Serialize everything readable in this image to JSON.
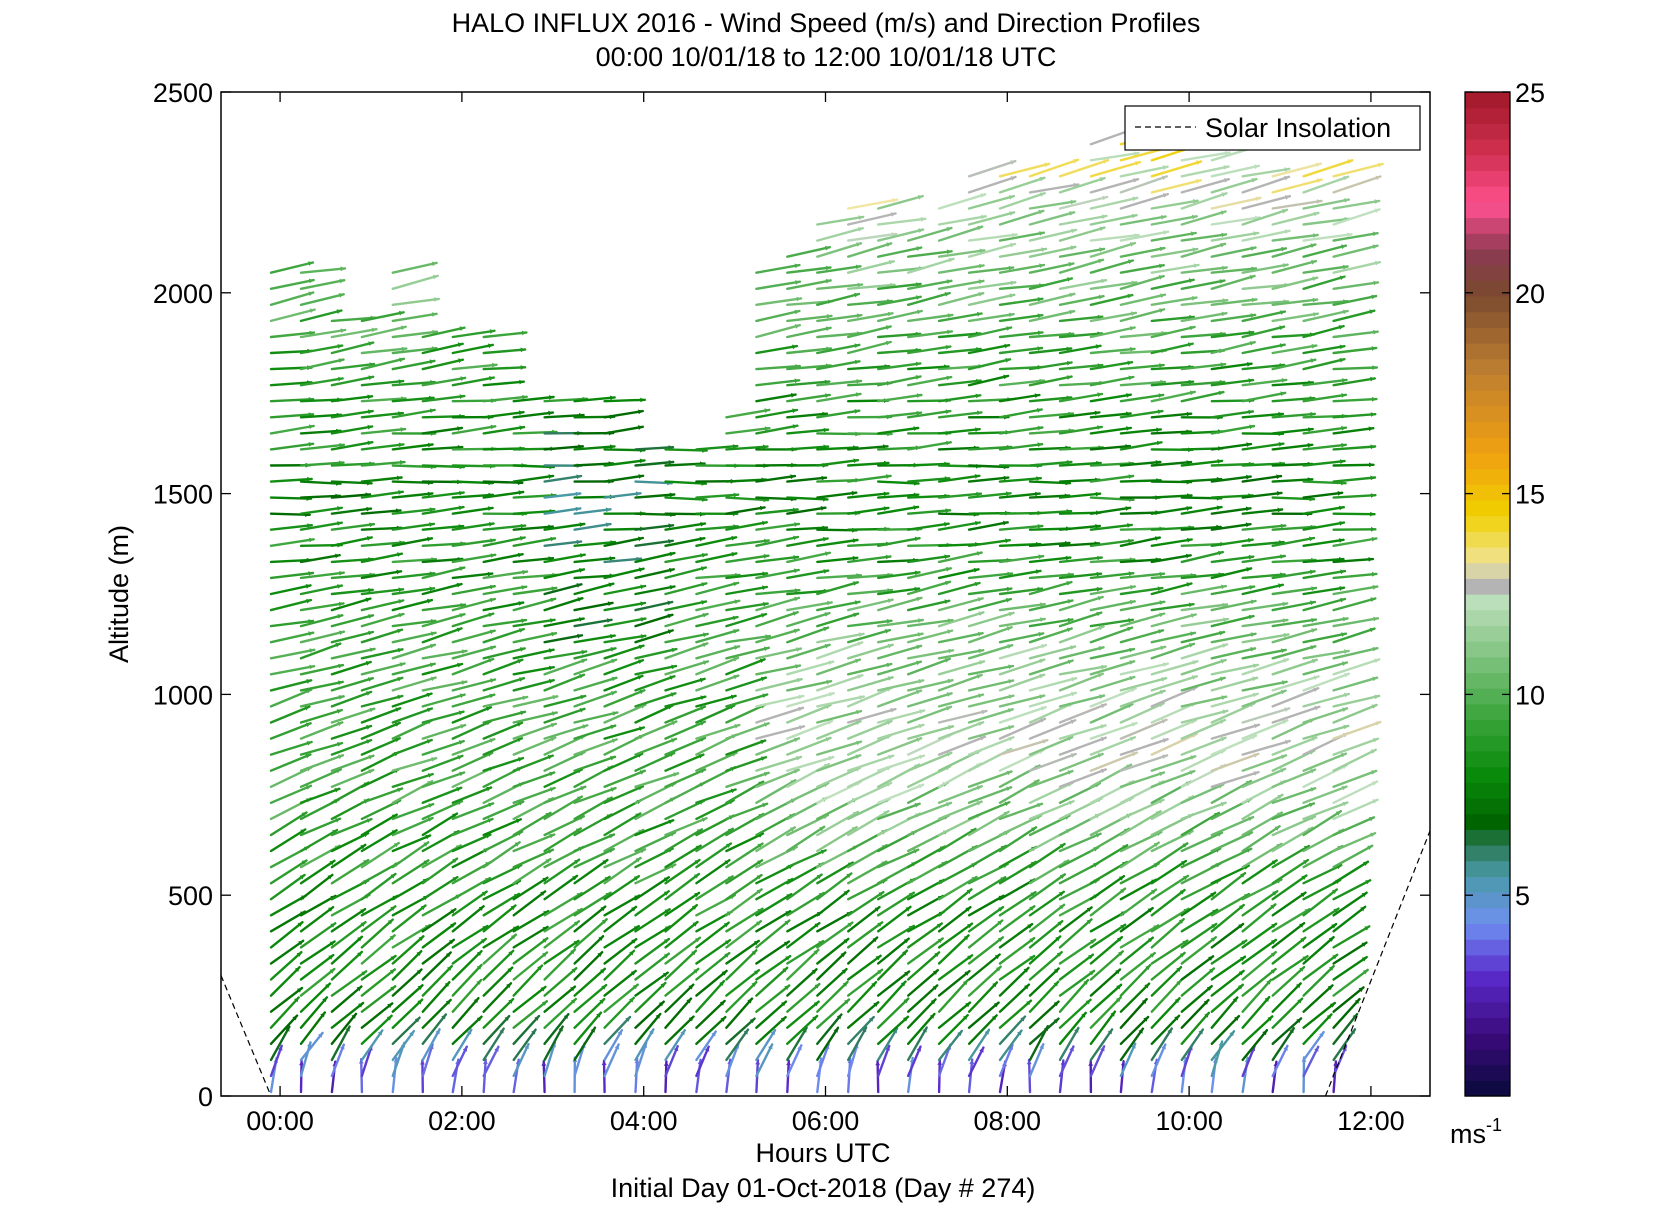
{
  "chart_data": {
    "type": "wind-barb profile (time-height)",
    "title": "HALO INFLUX 2016 - Wind Speed (m/s) and Direction Profiles",
    "subtitle": "00:00 10/01/18 to 12:00 10/01/18  UTC",
    "xlabel": "Hours UTC",
    "xlabel2": "Initial Day 01-Oct-2018 (Day # 274)",
    "ylabel": "Altitude (m)",
    "x_ticks": [
      "00:00",
      "02:00",
      "04:00",
      "06:00",
      "08:00",
      "10:00",
      "12:00"
    ],
    "x_tick_hours": [
      0,
      2,
      4,
      6,
      8,
      10,
      12
    ],
    "xlim_hours": [
      -0.65,
      12.65
    ],
    "y_ticks": [
      "0",
      "500",
      "1000",
      "1500",
      "2000",
      "2500"
    ],
    "y_tick_values": [
      0,
      500,
      1000,
      1500,
      2000,
      2500
    ],
    "ylim": [
      0,
      2500
    ],
    "colorbar": {
      "ticks": [
        "5",
        "10",
        "15",
        "20",
        "25"
      ],
      "tick_values": [
        5,
        10,
        15,
        20,
        25
      ],
      "range": [
        0,
        25
      ],
      "unit_base": "ms",
      "unit_exp": "-1",
      "stops": [
        {
          "v": 0,
          "color": "#0a0a3c"
        },
        {
          "v": 1.5,
          "color": "#3a0a7a"
        },
        {
          "v": 3,
          "color": "#5a2acc"
        },
        {
          "v": 4.3,
          "color": "#6f8ff0"
        },
        {
          "v": 5.5,
          "color": "#4a9aa8"
        },
        {
          "v": 6.2,
          "color": "#2e7a5a"
        },
        {
          "v": 6.8,
          "color": "#006400"
        },
        {
          "v": 8,
          "color": "#0a8a0a"
        },
        {
          "v": 9.5,
          "color": "#3ea63e"
        },
        {
          "v": 11,
          "color": "#82c482"
        },
        {
          "v": 12.4,
          "color": "#bfe0bf"
        },
        {
          "v": 12.6,
          "color": "#b4b4b4"
        },
        {
          "v": 12.9,
          "color": "#b4b4b4"
        },
        {
          "v": 13.2,
          "color": "#f0e6a0"
        },
        {
          "v": 14.5,
          "color": "#f0d000"
        },
        {
          "v": 16,
          "color": "#f0a010"
        },
        {
          "v": 18,
          "color": "#c08030"
        },
        {
          "v": 20,
          "color": "#7a4a30"
        },
        {
          "v": 21,
          "color": "#8a3a50"
        },
        {
          "v": 22.2,
          "color": "#ff5090"
        },
        {
          "v": 23.5,
          "color": "#d03050"
        },
        {
          "v": 25,
          "color": "#a01828"
        }
      ]
    },
    "legend": {
      "label": "Solar Insolation",
      "style": "dashed",
      "placement": "top-right"
    },
    "solar_insolation_lines": [
      {
        "points": [
          [
            -0.65,
            300
          ],
          [
            -0.1,
            0
          ]
        ]
      },
      {
        "points": [
          [
            11.5,
            0
          ],
          [
            12.65,
            660
          ]
        ]
      }
    ],
    "profile_times_hours": [
      -0.1,
      0.23,
      0.57,
      0.9,
      1.24,
      1.57,
      1.9,
      2.24,
      2.57,
      2.91,
      3.24,
      3.57,
      3.91,
      4.24,
      4.58,
      4.91,
      5.24,
      5.58,
      5.91,
      6.25,
      6.58,
      6.91,
      7.25,
      7.58,
      7.92,
      8.25,
      8.58,
      8.92,
      9.25,
      9.59,
      9.92,
      10.25,
      10.59,
      10.92,
      11.26,
      11.59
    ],
    "profile_top_altitude_m": [
      2080,
      2050,
      1950,
      1950,
      2080,
      1920,
      1920,
      1920,
      1760,
      1760,
      1760,
      1760,
      1640,
      1620,
      1640,
      1720,
      2050,
      2090,
      2180,
      2220,
      2220,
      2160,
      2240,
      2290,
      2290,
      2290,
      2310,
      2370,
      2370,
      2400,
      2400,
      2350,
      2310,
      2310,
      2290,
      2290
    ],
    "altitude_step_m": 40,
    "wind_regime": [
      {
        "alt_m": 0,
        "speed_ms": 3.5,
        "dir_deg": 200
      },
      {
        "alt_m": 60,
        "speed_ms": 4.5,
        "dir_deg": 215
      },
      {
        "alt_m": 150,
        "speed_ms": 8,
        "dir_deg": 225
      },
      {
        "alt_m": 400,
        "speed_ms": 8.5,
        "dir_deg": 235
      },
      {
        "alt_m": 800,
        "speed_ms": 9.5,
        "dir_deg": 248
      },
      {
        "alt_m": 1200,
        "speed_ms": 9,
        "dir_deg": 258
      },
      {
        "alt_m": 1500,
        "speed_ms": 8,
        "dir_deg": 268
      },
      {
        "alt_m": 1800,
        "speed_ms": 9,
        "dir_deg": 262
      },
      {
        "alt_m": 2100,
        "speed_ms": 11,
        "dir_deg": 258
      },
      {
        "alt_m": 2400,
        "speed_ms": 14,
        "dir_deg": 255
      }
    ]
  }
}
